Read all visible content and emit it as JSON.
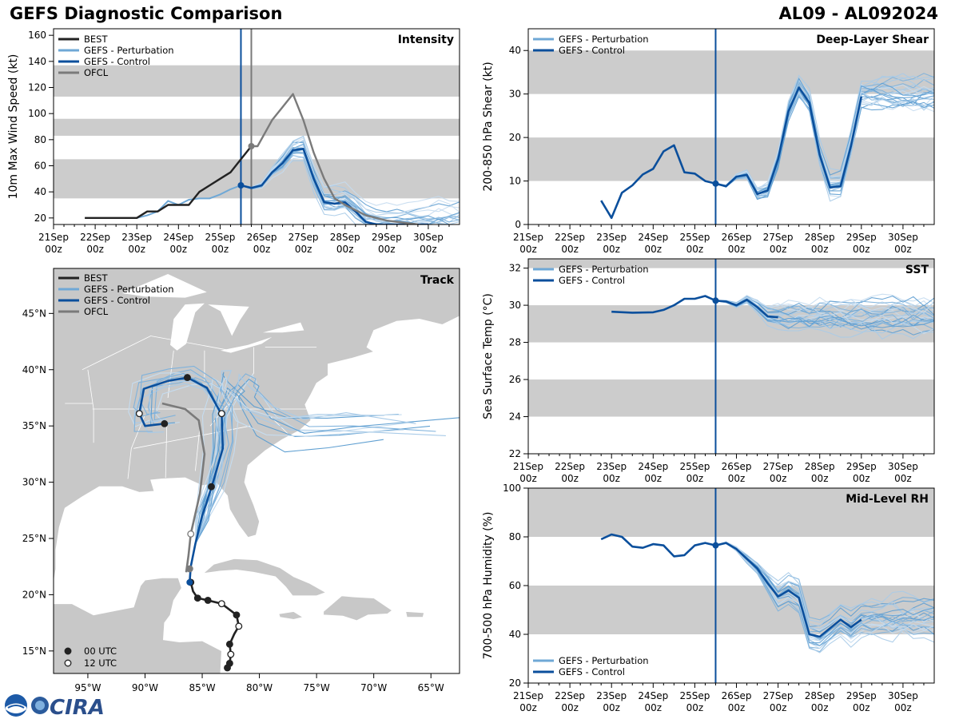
{
  "header": {
    "title": "GEFS Diagnostic Comparison",
    "storm": "AL09 - AL092024"
  },
  "colors": {
    "best": "#222222",
    "perturbation": "#6fa8d6",
    "control": "#0b4f9c",
    "ofcl": "#7a7a7a",
    "band": "#cccccc",
    "land": "#c8c8c8",
    "ocean": "#ffffff"
  },
  "logos": [
    "NOAA",
    "CIRA"
  ],
  "chart_data": [
    {
      "id": "intensity",
      "type": "line",
      "panel_label": "Intensity",
      "ylabel": "10m Max Wind Speed (kt)",
      "x_tick_labels": [
        "21Sep\n00z",
        "22Sep\n00z",
        "23Sep\n00z",
        "24Sep\n00z",
        "25Sep\n00z",
        "26Sep\n00z",
        "27Sep\n00z",
        "28Sep\n00z",
        "29Sep\n00z",
        "30Sep\n00z"
      ],
      "x_days_range": [
        21,
        30.75
      ],
      "ylim": [
        15,
        165
      ],
      "y_ticks": [
        20,
        40,
        60,
        80,
        100,
        120,
        140,
        160
      ],
      "bands": [
        [
          35,
          65
        ],
        [
          83,
          96
        ],
        [
          113,
          137
        ]
      ],
      "vlines": [
        {
          "t": 25.5,
          "color": "control"
        },
        {
          "t": 25.75,
          "color": "ofcl"
        }
      ],
      "legend": [
        "BEST",
        "GEFS - Perturbation",
        "GEFS - Control",
        "OFCL"
      ],
      "series": [
        {
          "name": "BEST",
          "color": "best",
          "x": [
            21.75,
            22,
            22.25,
            22.5,
            22.75,
            23,
            23.25,
            23.5,
            23.75,
            24,
            24.25,
            24.5,
            24.75,
            25,
            25.25,
            25.5,
            25.75
          ],
          "y": [
            20,
            20,
            20,
            20,
            20,
            20,
            25,
            25,
            30,
            30,
            30,
            40,
            45,
            50,
            55,
            65,
            75
          ]
        },
        {
          "name": "GEFS - Control",
          "color": "control",
          "x": [
            25.5,
            25.75,
            26,
            26.25,
            26.5,
            26.75,
            27,
            27.25,
            27.5,
            27.75,
            28,
            28.25,
            28.5,
            28.75,
            29,
            29.5,
            30
          ],
          "y": [
            45,
            43,
            45,
            55,
            62,
            72,
            73,
            50,
            32,
            31,
            32,
            25,
            17,
            15,
            15,
            15,
            15
          ]
        },
        {
          "name": "OFCL",
          "color": "ofcl",
          "x": [
            25.75,
            25.9,
            26.25,
            26.5,
            26.75,
            27,
            27.25,
            27.5,
            27.75,
            28,
            28.5,
            29,
            29.75
          ],
          "y": [
            75,
            75,
            95,
            105,
            115,
            95,
            70,
            50,
            35,
            30,
            22,
            18,
            15
          ]
        }
      ],
      "perturbations": [
        {
          "x": [
            23,
            23.25,
            23.5,
            23.75,
            24,
            24.25,
            24.5,
            24.75,
            25,
            25.25,
            25.5
          ],
          "y": [
            20,
            22,
            25,
            33,
            30,
            34,
            35,
            35,
            38,
            42,
            45
          ]
        }
      ]
    },
    {
      "id": "shear",
      "type": "line",
      "panel_label": "Deep-Layer Shear",
      "ylabel": "200-850 hPa Shear (kt)",
      "x_tick_labels": [
        "21Sep\n00z",
        "22Sep\n00z",
        "23Sep\n00z",
        "24Sep\n00z",
        "25Sep\n00z",
        "26Sep\n00z",
        "27Sep\n00z",
        "28Sep\n00z",
        "29Sep\n00z",
        "30Sep\n00z"
      ],
      "x_days_range": [
        21,
        30.75
      ],
      "ylim": [
        0,
        45
      ],
      "y_ticks": [
        0,
        10,
        20,
        30,
        40
      ],
      "bands": [
        [
          10,
          20
        ],
        [
          30,
          40
        ]
      ],
      "vlines": [
        {
          "t": 25.5,
          "color": "control"
        }
      ],
      "legend": [
        "GEFS - Perturbation",
        "GEFS - Control"
      ],
      "series": [
        {
          "name": "GEFS - Control",
          "color": "control",
          "x": [
            22.75,
            23,
            23.25,
            23.5,
            23.75,
            24,
            24.25,
            24.5,
            24.75,
            25,
            25.25,
            25.5,
            25.75,
            26,
            26.25,
            26.5,
            26.75,
            27,
            27.25,
            27.5,
            27.75,
            28,
            28.25,
            28.5,
            28.75,
            29
          ],
          "y": [
            5.5,
            1.5,
            7.3,
            9,
            11.5,
            12.8,
            16.8,
            18.2,
            12,
            11.7,
            10,
            9.4,
            8.8,
            11,
            11.4,
            7,
            7.8,
            15,
            26,
            31.5,
            28,
            16,
            8.5,
            8.8,
            18,
            29.4
          ]
        }
      ]
    },
    {
      "id": "sst",
      "type": "line",
      "panel_label": "SST",
      "ylabel": "Sea Surface Temp (°C)",
      "x_tick_labels": [
        "21Sep\n00z",
        "22Sep\n00z",
        "23Sep\n00z",
        "24Sep\n00z",
        "25Sep\n00z",
        "26Sep\n00z",
        "27Sep\n00z",
        "28Sep\n00z",
        "29Sep\n00z",
        "30Sep\n00z"
      ],
      "x_days_range": [
        21,
        30.75
      ],
      "ylim": [
        22,
        32.5
      ],
      "y_ticks": [
        22,
        24,
        26,
        28,
        30,
        32
      ],
      "bands": [
        [
          24,
          26
        ],
        [
          28,
          30
        ],
        [
          32,
          32.5
        ]
      ],
      "vlines": [
        {
          "t": 25.5,
          "color": "control"
        }
      ],
      "legend": [
        "GEFS - Perturbation",
        "GEFS - Control"
      ],
      "series": [
        {
          "name": "GEFS - Control",
          "color": "control",
          "x": [
            23,
            23.5,
            24,
            24.25,
            24.5,
            24.75,
            25,
            25.25,
            25.5,
            25.75,
            26,
            26.25,
            26.5,
            26.75,
            27
          ],
          "y": [
            29.65,
            29.6,
            29.62,
            29.75,
            30,
            30.35,
            30.35,
            30.5,
            30.25,
            30.2,
            30,
            30.3,
            29.9,
            29.4,
            29.35
          ]
        }
      ]
    },
    {
      "id": "rh",
      "type": "line",
      "panel_label": "Mid-Level RH",
      "ylabel": "700-500 hPa Humidity (%)",
      "x_tick_labels": [
        "21Sep\n00z",
        "22Sep\n00z",
        "23Sep\n00z",
        "24Sep\n00z",
        "25Sep\n00z",
        "26Sep\n00z",
        "27Sep\n00z",
        "28Sep\n00z",
        "29Sep\n00z",
        "30Sep\n00z"
      ],
      "x_days_range": [
        21,
        30.75
      ],
      "ylim": [
        20,
        100
      ],
      "y_ticks": [
        20,
        40,
        60,
        80,
        100
      ],
      "bands": [
        [
          40,
          60
        ],
        [
          80,
          100
        ]
      ],
      "vlines": [
        {
          "t": 25.5,
          "color": "control"
        }
      ],
      "legend": [
        "GEFS - Perturbation",
        "GEFS - Control"
      ],
      "series": [
        {
          "name": "GEFS - Control",
          "color": "control",
          "x": [
            22.75,
            23,
            23.25,
            23.5,
            23.75,
            24,
            24.25,
            24.5,
            24.75,
            25,
            25.25,
            25.5,
            25.75,
            26,
            26.25,
            26.5,
            26.75,
            27,
            27.25,
            27.5,
            27.75,
            28,
            28.25,
            28.5,
            28.75,
            29
          ],
          "y": [
            79,
            81,
            80,
            76,
            75.5,
            77,
            76.5,
            72,
            72.5,
            76.5,
            77.5,
            76.5,
            77.5,
            75,
            71,
            67,
            61,
            55.5,
            58,
            55,
            40,
            39,
            42.5,
            46,
            43,
            46
          ]
        }
      ]
    },
    {
      "id": "track",
      "type": "map",
      "panel_label": "Track",
      "lon_range": [
        -98,
        -62.5
      ],
      "lat_range": [
        13,
        49
      ],
      "x_tick_labels": [
        "95°W",
        "90°W",
        "85°W",
        "80°W",
        "75°W",
        "70°W",
        "65°W"
      ],
      "x_tick_values": [
        -95,
        -90,
        -85,
        -80,
        -75,
        -70,
        -65
      ],
      "y_tick_labels": [
        "15°N",
        "20°N",
        "25°N",
        "30°N",
        "35°N",
        "40°N",
        "45°N"
      ],
      "y_tick_values": [
        15,
        20,
        25,
        30,
        35,
        40,
        45
      ],
      "legend": [
        "BEST",
        "GEFS - Perturbation",
        "GEFS - Control",
        "OFCL"
      ],
      "marker_legend": [
        "00 UTC",
        "12 UTC"
      ],
      "series": [
        {
          "name": "BEST",
          "color": "best",
          "points": [
            [
              -82.8,
              13.5
            ],
            [
              -82.6,
              13.9
            ],
            [
              -82.5,
              14.7
            ],
            [
              -82.6,
              15.6
            ],
            [
              -82.2,
              16.5
            ],
            [
              -81.8,
              17.2
            ],
            [
              -82.0,
              18.2
            ],
            [
              -83.3,
              19.2
            ],
            [
              -84.5,
              19.5
            ],
            [
              -85.4,
              19.7
            ],
            [
              -85.8,
              20.3
            ],
            [
              -86.0,
              21.1
            ]
          ]
        },
        {
          "name": "GEFS - Control",
          "color": "control",
          "points": [
            [
              -86.1,
              21.1
            ],
            [
              -86.0,
              22.5
            ],
            [
              -85.6,
              24.5
            ],
            [
              -85.0,
              27
            ],
            [
              -84.2,
              29.5
            ],
            [
              -83.2,
              33
            ],
            [
              -83.3,
              36
            ],
            [
              -84.6,
              38.4
            ],
            [
              -86.3,
              39.3
            ],
            [
              -88,
              39
            ],
            [
              -90.1,
              38.3
            ],
            [
              -90.5,
              36.1
            ],
            [
              -90.0,
              35
            ],
            [
              -88.3,
              35.2
            ]
          ]
        },
        {
          "name": "OFCL",
          "color": "ofcl",
          "points": [
            [
              -86.4,
              22.0
            ],
            [
              -86.2,
              23.5
            ],
            [
              -86,
              25.4
            ],
            [
              -85.2,
              29
            ],
            [
              -84.8,
              32.5
            ],
            [
              -85.3,
              35.5
            ],
            [
              -86.5,
              36.5
            ],
            [
              -88.5,
              37
            ]
          ]
        }
      ],
      "best_markers": [
        {
          "lon": -82.8,
          "lat": 13.5,
          "utc": "00"
        },
        {
          "lon": -82.6,
          "lat": 13.9,
          "utc": "00"
        },
        {
          "lon": -82.5,
          "lat": 14.7,
          "utc": "12"
        },
        {
          "lon": -82.6,
          "lat": 15.6,
          "utc": "00"
        },
        {
          "lon": -81.8,
          "lat": 17.2,
          "utc": "12"
        },
        {
          "lon": -82.0,
          "lat": 18.2,
          "utc": "00"
        },
        {
          "lon": -83.3,
          "lat": 19.2,
          "utc": "12"
        },
        {
          "lon": -84.5,
          "lat": 19.5,
          "utc": "00"
        },
        {
          "lon": -85.4,
          "lat": 19.7,
          "utc": "00"
        },
        {
          "lon": -86.0,
          "lat": 21.1,
          "utc": "00"
        }
      ],
      "control_markers": [
        {
          "lon": -84.2,
          "lat": 29.6,
          "utc": "00"
        },
        {
          "lon": -83.3,
          "lat": 36.1,
          "utc": "12"
        },
        {
          "lon": -86.3,
          "lat": 39.3,
          "utc": "00"
        },
        {
          "lon": -90.5,
          "lat": 36.1,
          "utc": "12"
        },
        {
          "lon": -88.3,
          "lat": 35.2,
          "utc": "00"
        }
      ],
      "ofcl_markers": [
        {
          "lon": -86.1,
          "lat": 22.3,
          "utc": "00"
        },
        {
          "lon": -86.0,
          "lat": 25.4,
          "utc": "12"
        }
      ]
    }
  ]
}
